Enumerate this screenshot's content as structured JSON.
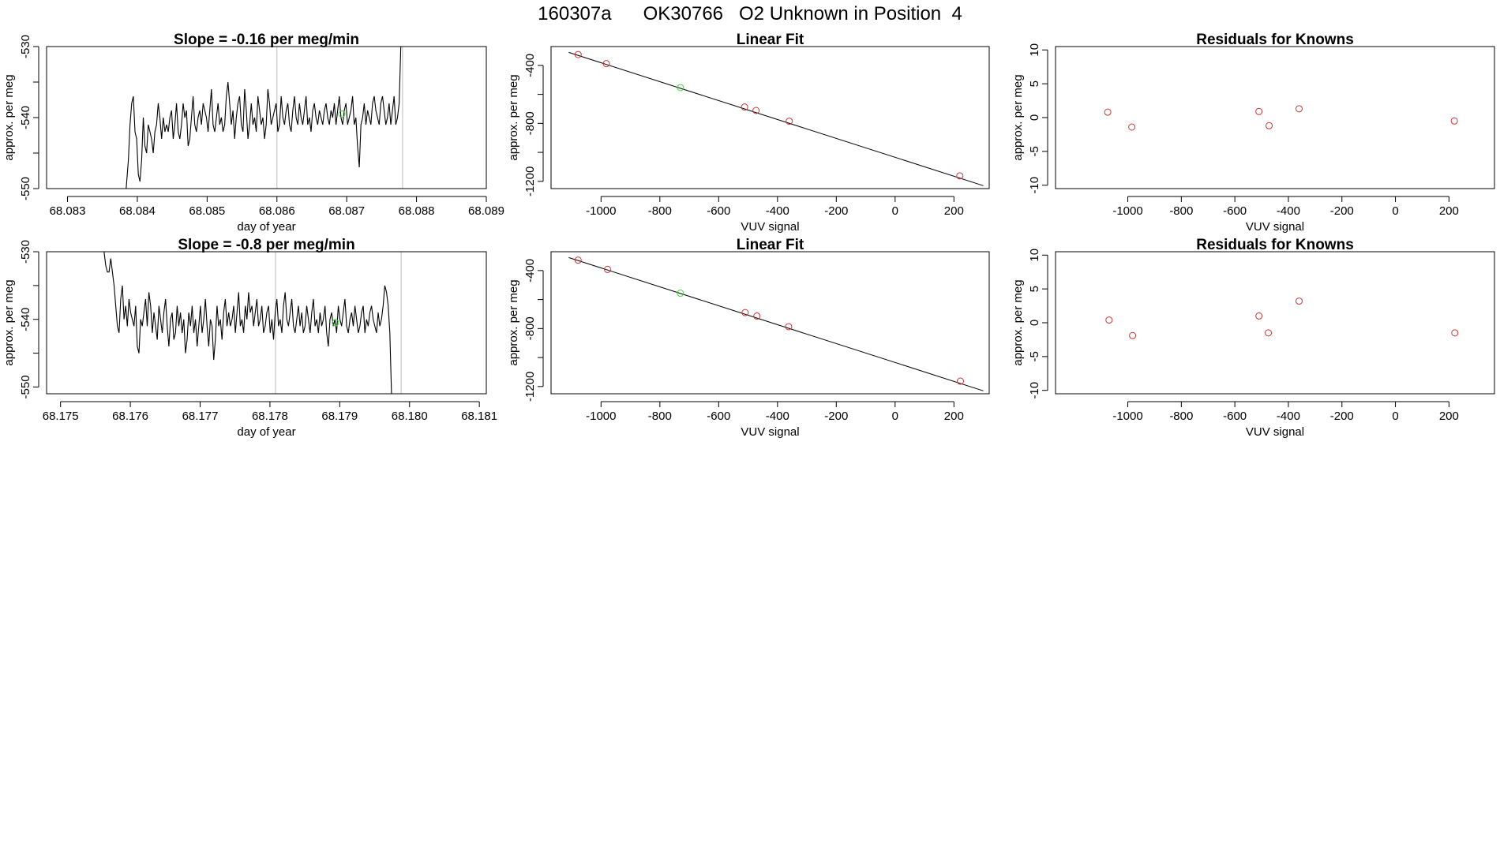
{
  "header": {
    "title": "160307a      OK30766   O2 Unknown in Position  4"
  },
  "chart_data": [
    {
      "type": "line",
      "title": "Slope =  -0.16  per meg/min",
      "xlabel": "day of year",
      "ylabel": "approx. per meg",
      "xlim": [
        68.0827,
        68.089
      ],
      "ylim": [
        -550,
        -530
      ],
      "xticks": [
        68.083,
        68.084,
        68.085,
        68.086,
        68.087,
        68.088,
        68.089
      ],
      "xtick_labels": [
        "68.083",
        "68.084",
        "68.085",
        "68.086",
        "68.087",
        "68.088",
        "68.089"
      ],
      "yticks": [
        -550,
        -545,
        -540,
        -535,
        -530
      ],
      "ytick_labels": [
        "-550",
        "",
        "-540",
        "",
        "-530"
      ],
      "vlines": [
        68.086,
        68.0878
      ],
      "series": [
        {
          "x_start": 68.0838,
          "x_step": 2.38e-05,
          "color": "#000000",
          "values": [
            -553,
            -552,
            -549,
            -546,
            -541,
            -538,
            -537,
            -542,
            -543,
            -548,
            -549,
            -546,
            -540,
            -544,
            -545,
            -541,
            -542,
            -543,
            -545,
            -542,
            -541,
            -538,
            -540,
            -543,
            -540,
            -542,
            -541,
            -542,
            -540,
            -539,
            -543,
            -541,
            -538,
            -542,
            -543,
            -541,
            -538,
            -540,
            -539,
            -544,
            -543,
            -540,
            -537,
            -541,
            -542,
            -540,
            -539,
            -541,
            -538,
            -539,
            -540,
            -542,
            -539,
            -536,
            -541,
            -542,
            -540,
            -538,
            -541,
            -540,
            -542,
            -541,
            -537,
            -535,
            -538,
            -541,
            -539,
            -543,
            -540,
            -538,
            -537,
            -541,
            -542,
            -536,
            -539,
            -543,
            -541,
            -538,
            -541,
            -540,
            -542,
            -537,
            -539,
            -541,
            -540,
            -543,
            -541,
            -536,
            -538,
            -541,
            -540,
            -539,
            -538,
            -542,
            -541,
            -537,
            -540,
            -541,
            -539,
            -538,
            -541,
            -542,
            -539,
            -537,
            -540,
            -541,
            -538,
            -540,
            -541,
            -539,
            -537,
            -541,
            -540,
            -542,
            -539,
            -538,
            -540,
            -541,
            -539,
            -540,
            -541,
            -539,
            -538,
            -540,
            -541,
            -539,
            -540,
            -538,
            -541,
            -539,
            -537,
            -540,
            -541,
            -539,
            -538,
            -541,
            -540,
            -539,
            -537,
            -541,
            -540,
            -544,
            -547,
            -541,
            -540,
            -538,
            -541,
            -539,
            -540,
            -541,
            -538,
            -537,
            -539,
            -540,
            -541,
            -538,
            -537,
            -539,
            -541,
            -540,
            -538,
            -541,
            -539,
            -537,
            -541,
            -540,
            -538,
            -530
          ]
        }
      ],
      "points": [
        {
          "x": 68.08693,
          "y": -539.5,
          "color": "#33dd33"
        }
      ]
    },
    {
      "type": "scatter",
      "title": "Linear Fit",
      "xlabel": "VUV signal",
      "ylabel": "approx. per meg",
      "xlim": [
        -1170,
        320
      ],
      "ylim": [
        -1250,
        -270
      ],
      "xticks": [
        -1000,
        -800,
        -600,
        -400,
        -200,
        0,
        200
      ],
      "xtick_labels": [
        "-1000",
        "-800",
        "-600",
        "-400",
        "-200",
        "0",
        "200"
      ],
      "yticks": [
        -1200,
        -1000,
        -800,
        -600,
        -400
      ],
      "ytick_labels": [
        "-1200",
        "",
        "-800",
        "",
        "-400"
      ],
      "fit_line": {
        "x": [
          -1110,
          300
        ],
        "y": [
          -310,
          -1230
        ]
      },
      "points": [
        {
          "x": -1078,
          "y": -325,
          "color": "#cc3333"
        },
        {
          "x": -982,
          "y": -388,
          "color": "#cc3333"
        },
        {
          "x": -730,
          "y": -553,
          "color": "#33dd33"
        },
        {
          "x": -512,
          "y": -687,
          "color": "#cc3333"
        },
        {
          "x": -473,
          "y": -711,
          "color": "#cc3333"
        },
        {
          "x": -360,
          "y": -785,
          "color": "#cc3333"
        },
        {
          "x": 220,
          "y": -1162,
          "color": "#cc3333"
        }
      ]
    },
    {
      "type": "scatter",
      "title": "Residuals for Knowns",
      "xlabel": "VUV signal",
      "ylabel": "approx. per meg",
      "xlim": [
        -1270,
        370
      ],
      "ylim": [
        -10.5,
        10.5
      ],
      "xticks": [
        -1000,
        -800,
        -600,
        -400,
        -200,
        0,
        200
      ],
      "xtick_labels": [
        "-1000",
        "-800",
        "-600",
        "-400",
        "-200",
        "0",
        "200"
      ],
      "yticks": [
        -10,
        -5,
        0,
        5,
        10
      ],
      "ytick_labels": [
        "-10",
        "-5",
        "0",
        "5",
        "10"
      ],
      "points": [
        {
          "x": -1075,
          "y": 0.8,
          "color": "#cc3333"
        },
        {
          "x": -985,
          "y": -1.4,
          "color": "#cc3333"
        },
        {
          "x": -510,
          "y": 0.9,
          "color": "#cc3333"
        },
        {
          "x": -472,
          "y": -1.2,
          "color": "#cc3333"
        },
        {
          "x": -360,
          "y": 1.3,
          "color": "#cc3333"
        },
        {
          "x": 220,
          "y": -0.5,
          "color": "#cc3333"
        }
      ]
    },
    {
      "type": "line",
      "title": "Slope =  -0.8  per meg/min",
      "xlabel": "day of year",
      "ylabel": "approx. per meg",
      "xlim": [
        68.1748,
        68.1811
      ],
      "ylim": [
        -551,
        -530
      ],
      "xticks": [
        68.175,
        68.176,
        68.177,
        68.178,
        68.179,
        68.18,
        68.181
      ],
      "xtick_labels": [
        "68.175",
        "68.176",
        "68.177",
        "68.178",
        "68.179",
        "68.180",
        "68.181"
      ],
      "yticks": [
        -550,
        -545,
        -540,
        -535,
        -530
      ],
      "ytick_labels": [
        "-550",
        "",
        "-540",
        "",
        "-530"
      ],
      "vlines": [
        68.17808,
        68.17988
      ],
      "series": [
        {
          "x_start": 68.1756,
          "x_step": 2.38e-05,
          "color": "#000000",
          "values": [
            -528,
            -530,
            -532,
            -533,
            -533,
            -531,
            -533,
            -535,
            -538,
            -541,
            -542,
            -537,
            -535,
            -540,
            -538,
            -541,
            -537,
            -539,
            -540,
            -541,
            -538,
            -544,
            -545,
            -540,
            -541,
            -539,
            -537,
            -541,
            -536,
            -538,
            -542,
            -539,
            -541,
            -543,
            -538,
            -540,
            -542,
            -539,
            -537,
            -541,
            -544,
            -540,
            -539,
            -543,
            -542,
            -538,
            -541,
            -539,
            -542,
            -540,
            -545,
            -543,
            -539,
            -541,
            -538,
            -542,
            -540,
            -544,
            -541,
            -538,
            -542,
            -540,
            -537,
            -541,
            -544,
            -540,
            -541,
            -546,
            -543,
            -538,
            -541,
            -540,
            -543,
            -539,
            -537,
            -541,
            -539,
            -541,
            -540,
            -538,
            -542,
            -539,
            -536,
            -541,
            -540,
            -542,
            -538,
            -540,
            -536,
            -539,
            -538,
            -541,
            -539,
            -537,
            -541,
            -540,
            -538,
            -542,
            -541,
            -539,
            -538,
            -542,
            -540,
            -543,
            -539,
            -537,
            -541,
            -540,
            -542,
            -538,
            -536,
            -540,
            -541,
            -539,
            -537,
            -541,
            -542,
            -540,
            -538,
            -541,
            -539,
            -542,
            -541,
            -538,
            -540,
            -542,
            -539,
            -537,
            -541,
            -540,
            -542,
            -539,
            -541,
            -540,
            -538,
            -542,
            -544,
            -540,
            -539,
            -541,
            -540,
            -542,
            -538,
            -540,
            -541,
            -539,
            -537,
            -541,
            -542,
            -540,
            -539,
            -541,
            -538,
            -540,
            -542,
            -541,
            -539,
            -538,
            -542,
            -540,
            -541,
            -539,
            -538,
            -540,
            -541,
            -542,
            -539,
            -541,
            -540,
            -538,
            -535,
            -536,
            -538,
            -542,
            -551
          ]
        }
      ],
      "points": [
        {
          "x": 68.17894,
          "y": -540.5,
          "color": "#33dd33"
        }
      ]
    },
    {
      "type": "scatter",
      "title": "Linear Fit",
      "xlabel": "VUV signal",
      "ylabel": "approx. per meg",
      "xlim": [
        -1170,
        320
      ],
      "ylim": [
        -1250,
        -270
      ],
      "xticks": [
        -1000,
        -800,
        -600,
        -400,
        -200,
        0,
        200
      ],
      "xtick_labels": [
        "-1000",
        "-800",
        "-600",
        "-400",
        "-200",
        "0",
        "200"
      ],
      "yticks": [
        -1200,
        -1000,
        -800,
        -600,
        -400
      ],
      "ytick_labels": [
        "-1200",
        "",
        "-800",
        "",
        "-400"
      ],
      "fit_line": {
        "x": [
          -1110,
          300
        ],
        "y": [
          -310,
          -1230
        ]
      },
      "points": [
        {
          "x": -1078,
          "y": -328,
          "color": "#cc3333"
        },
        {
          "x": -978,
          "y": -392,
          "color": "#cc3333"
        },
        {
          "x": -730,
          "y": -556,
          "color": "#33dd33"
        },
        {
          "x": -510,
          "y": -690,
          "color": "#cc3333"
        },
        {
          "x": -470,
          "y": -714,
          "color": "#cc3333"
        },
        {
          "x": -362,
          "y": -787,
          "color": "#cc3333"
        },
        {
          "x": 222,
          "y": -1163,
          "color": "#cc3333"
        }
      ]
    },
    {
      "type": "scatter",
      "title": "Residuals for Knowns",
      "xlabel": "VUV signal",
      "ylabel": "approx. per meg",
      "xlim": [
        -1270,
        370
      ],
      "ylim": [
        -10.5,
        10.5
      ],
      "xticks": [
        -1000,
        -800,
        -600,
        -400,
        -200,
        0,
        200
      ],
      "xtick_labels": [
        "-1000",
        "-800",
        "-600",
        "-400",
        "-200",
        "0",
        "200"
      ],
      "yticks": [
        -10,
        -5,
        0,
        5,
        10
      ],
      "ytick_labels": [
        "-10",
        "-5",
        "0",
        "5",
        "10"
      ],
      "points": [
        {
          "x": -1070,
          "y": 0.4,
          "color": "#cc3333"
        },
        {
          "x": -982,
          "y": -1.9,
          "color": "#cc3333"
        },
        {
          "x": -510,
          "y": 1.0,
          "color": "#cc3333"
        },
        {
          "x": -475,
          "y": -1.5,
          "color": "#cc3333"
        },
        {
          "x": -360,
          "y": 3.2,
          "color": "#cc3333"
        },
        {
          "x": 222,
          "y": -1.5,
          "color": "#cc3333"
        }
      ]
    }
  ]
}
